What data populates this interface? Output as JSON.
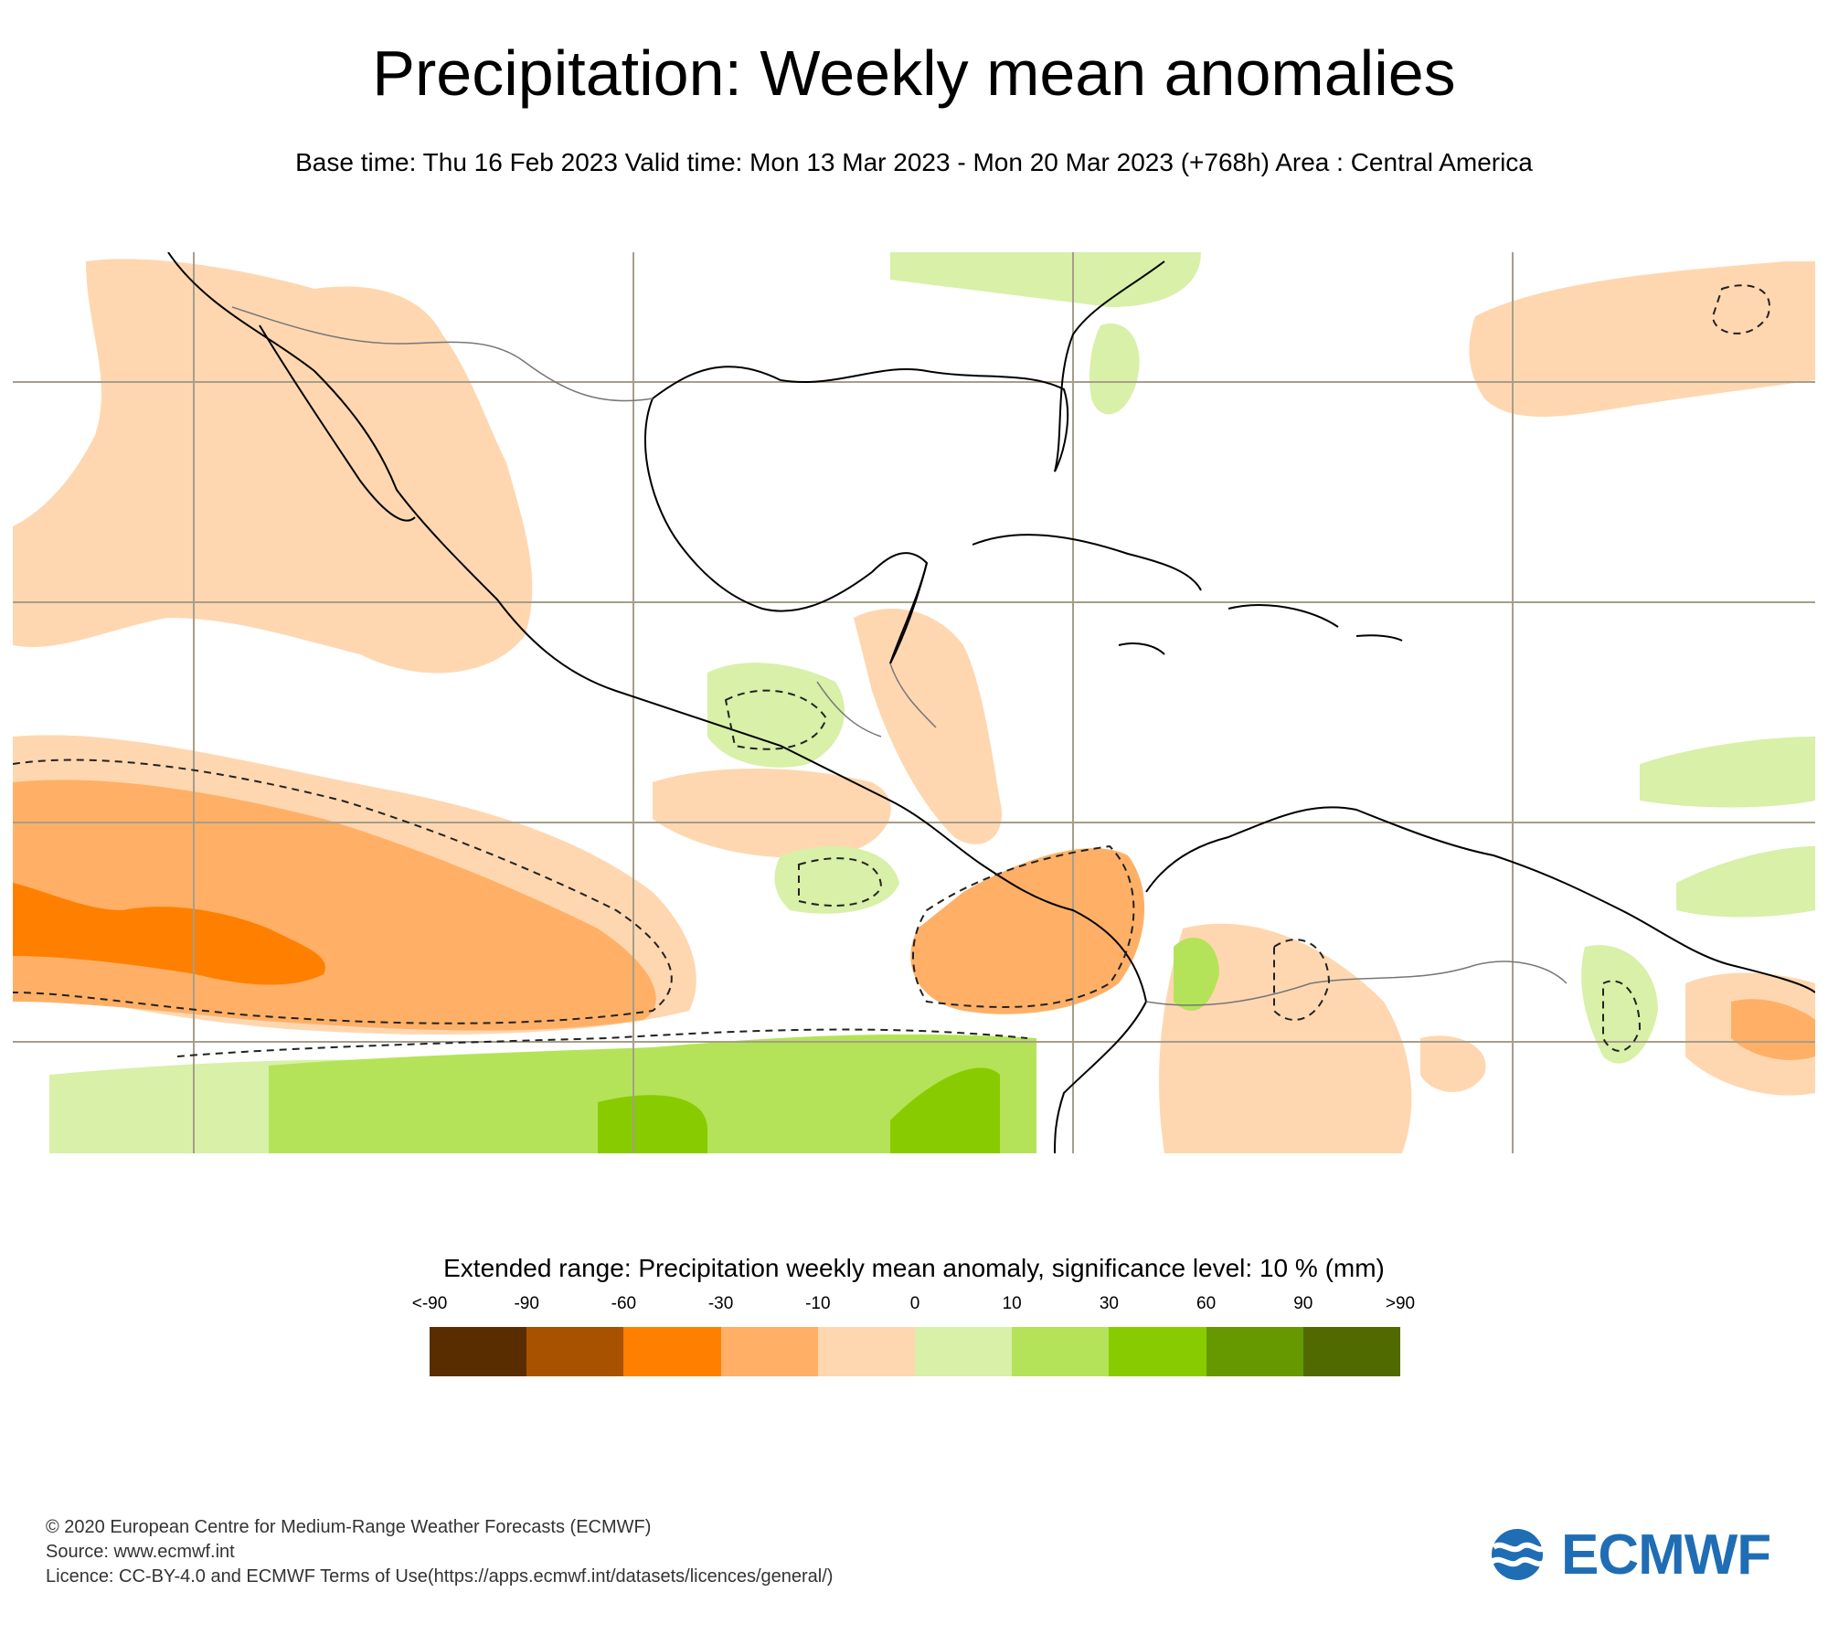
{
  "title": "Precipitation: Weekly mean anomalies",
  "subtitle": "Base time: Thu 16 Feb 2023 Valid time: Mon 13 Mar 2023 - Mon 20 Mar 2023 (+768h) Area : Central America",
  "legend": {
    "title": "Extended range: Precipitation weekly mean anomaly, significance level: 10 % (mm)",
    "tick_labels": [
      "<-90",
      "-90",
      "-60",
      "-30",
      "-10",
      "0",
      "10",
      "30",
      "60",
      "90",
      ">90"
    ],
    "colors": [
      "#5a2d00",
      "#a85200",
      "#ff7f00",
      "#ffb066",
      "#fed7b0",
      "#d8f0a8",
      "#b4e35a",
      "#88cc00",
      "#669900",
      "#506a00"
    ]
  },
  "footer": {
    "line1": "© 2020 European Centre for Medium-Range Weather Forecasts (ECMWF)",
    "line2": "Source: www.ecmwf.int",
    "line3": "Licence: CC-BY-4.0 and ECMWF Terms of Use(https://apps.ecmwf.int/datasets/licences/general/)"
  },
  "logo": {
    "text": "ECMWF",
    "color": "#1f6db4"
  },
  "map": {
    "area": "Central America",
    "anomaly_colors": {
      "light_orange": "#fed7b0",
      "mid_orange": "#ffb066",
      "strong_orange": "#ff7f00",
      "light_green": "#d8f0a8",
      "mid_green": "#b4e35a",
      "strong_green": "#88cc00"
    }
  }
}
